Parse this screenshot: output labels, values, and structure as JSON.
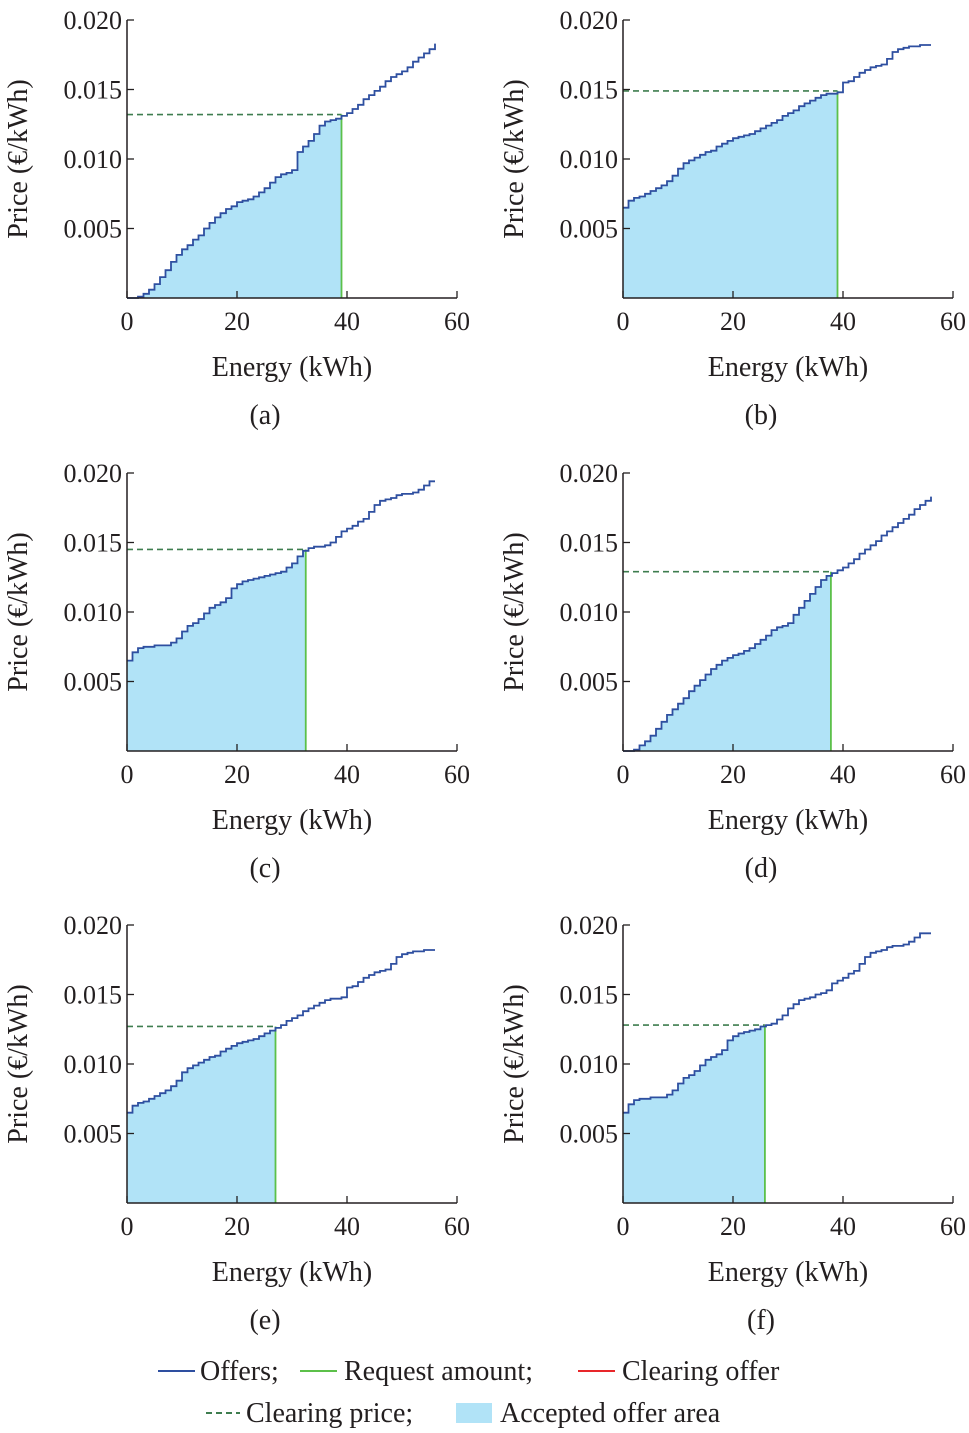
{
  "colors": {
    "offers": "#2e4fa0",
    "request": "#5cc04a",
    "clearing_offer": "#e8262a",
    "clearing_price": "#3e7d4f",
    "accepted_area": "#b1e3f7",
    "axis": "#231f20"
  },
  "legend": {
    "offers": "Offers;",
    "request": "Request amount;",
    "clearing_offer": "Clearing offer",
    "clearing_price": "Clearing price;",
    "accepted_area": "Accepted offer area"
  },
  "chart_data": [
    {
      "type": "line",
      "panel_label": "(a)",
      "xlabel": "Energy (kWh)",
      "ylabel": "Price (€/kWh)",
      "xlim": [
        0,
        60
      ],
      "ylim": [
        0,
        0.02
      ],
      "xticks": [
        "0",
        "20",
        "40",
        "60"
      ],
      "yticks": [
        "0.005",
        "0.010",
        "0.015",
        "0.020"
      ],
      "offers": {
        "x": [
          0,
          2,
          3,
          4,
          5,
          6,
          7,
          8,
          9,
          10,
          11,
          12,
          13,
          14,
          15,
          16,
          17,
          18,
          19,
          20,
          21,
          22,
          23,
          24,
          25,
          26,
          27,
          28,
          29,
          30,
          31,
          32,
          33,
          34,
          35,
          36,
          37,
          38,
          39,
          40,
          41,
          42,
          43,
          44,
          45,
          46,
          47,
          48,
          49,
          50,
          51,
          52,
          53,
          54,
          55,
          56
        ],
        "y": [
          0.0,
          0.0001,
          0.0003,
          0.0006,
          0.001,
          0.0015,
          0.002,
          0.0026,
          0.0031,
          0.0035,
          0.0038,
          0.0042,
          0.0045,
          0.005,
          0.0054,
          0.0058,
          0.0061,
          0.0064,
          0.0066,
          0.0069,
          0.007,
          0.0071,
          0.0073,
          0.0076,
          0.0079,
          0.0083,
          0.0087,
          0.0089,
          0.009,
          0.0092,
          0.0105,
          0.0109,
          0.0113,
          0.0118,
          0.0124,
          0.0127,
          0.0128,
          0.0129,
          0.0131,
          0.0133,
          0.0136,
          0.0139,
          0.0143,
          0.0146,
          0.0149,
          0.0152,
          0.0156,
          0.0159,
          0.0161,
          0.0163,
          0.0166,
          0.017,
          0.0173,
          0.0176,
          0.0179,
          0.0183
        ]
      },
      "request_amount": 39,
      "clearing_price": 0.0132
    },
    {
      "type": "line",
      "panel_label": "(b)",
      "xlabel": "Energy (kWh)",
      "ylabel": "Price (€/kWh)",
      "xlim": [
        0,
        60
      ],
      "ylim": [
        0,
        0.02
      ],
      "xticks": [
        "0",
        "20",
        "40",
        "60"
      ],
      "yticks": [
        "0.005",
        "0.010",
        "0.015",
        "0.020"
      ],
      "offers": {
        "x": [
          0,
          1,
          2,
          3,
          4,
          5,
          6,
          7,
          8,
          9,
          10,
          11,
          12,
          13,
          14,
          15,
          16,
          17,
          18,
          19,
          20,
          21,
          22,
          23,
          24,
          25,
          26,
          27,
          28,
          29,
          30,
          31,
          32,
          33,
          34,
          35,
          36,
          37,
          38,
          39,
          40,
          41,
          42,
          43,
          44,
          45,
          46,
          47,
          48,
          49,
          50,
          51,
          52,
          53,
          54,
          55,
          56
        ],
        "y": [
          0.0065,
          0.007,
          0.0072,
          0.0073,
          0.0075,
          0.0077,
          0.0079,
          0.0081,
          0.0084,
          0.0088,
          0.0093,
          0.0097,
          0.0099,
          0.0101,
          0.0103,
          0.0105,
          0.0106,
          0.0109,
          0.0111,
          0.0113,
          0.0115,
          0.0116,
          0.0117,
          0.0118,
          0.012,
          0.0122,
          0.0124,
          0.0126,
          0.0128,
          0.0131,
          0.0133,
          0.0135,
          0.0138,
          0.014,
          0.0142,
          0.0144,
          0.0146,
          0.0147,
          0.0147,
          0.0148,
          0.0155,
          0.0156,
          0.0159,
          0.0162,
          0.0164,
          0.0166,
          0.0167,
          0.0168,
          0.0172,
          0.0177,
          0.0179,
          0.018,
          0.0181,
          0.0181,
          0.0182,
          0.0182,
          0.0182
        ]
      },
      "request_amount": 39,
      "clearing_price": 0.0149
    },
    {
      "type": "line",
      "panel_label": "(c)",
      "xlabel": "Energy (kWh)",
      "ylabel": "Price (€/kWh)",
      "xlim": [
        0,
        60
      ],
      "ylim": [
        0,
        0.02
      ],
      "xticks": [
        "0",
        "20",
        "40",
        "60"
      ],
      "yticks": [
        "0.005",
        "0.010",
        "0.015",
        "0.020"
      ],
      "offers": {
        "x": [
          0,
          1,
          2,
          3,
          4,
          5,
          6,
          7,
          8,
          9,
          10,
          11,
          12,
          13,
          14,
          15,
          16,
          17,
          18,
          19,
          20,
          21,
          22,
          23,
          24,
          25,
          26,
          27,
          28,
          29,
          30,
          31,
          32,
          33,
          34,
          35,
          36,
          37,
          38,
          39,
          40,
          41,
          42,
          43,
          44,
          45,
          46,
          47,
          48,
          49,
          50,
          51,
          52,
          53,
          54,
          55,
          56
        ],
        "y": [
          0.0065,
          0.0071,
          0.0074,
          0.0075,
          0.0075,
          0.0076,
          0.0076,
          0.0076,
          0.0078,
          0.0081,
          0.0086,
          0.009,
          0.0092,
          0.0095,
          0.0099,
          0.0103,
          0.0105,
          0.0107,
          0.011,
          0.0117,
          0.012,
          0.0122,
          0.0123,
          0.0124,
          0.0125,
          0.0126,
          0.0127,
          0.0128,
          0.0129,
          0.0132,
          0.0135,
          0.014,
          0.0144,
          0.0146,
          0.0147,
          0.0147,
          0.0148,
          0.015,
          0.0154,
          0.0158,
          0.016,
          0.0162,
          0.0165,
          0.0167,
          0.0172,
          0.0177,
          0.018,
          0.0181,
          0.0182,
          0.0184,
          0.0185,
          0.0185,
          0.0186,
          0.0188,
          0.0191,
          0.0194,
          0.0194
        ]
      },
      "request_amount": 32.5,
      "clearing_price": 0.0145
    },
    {
      "type": "line",
      "panel_label": "(d)",
      "xlabel": "Energy (kWh)",
      "ylabel": "Price (€/kWh)",
      "xlim": [
        0,
        60
      ],
      "ylim": [
        0,
        0.02
      ],
      "xticks": [
        "0",
        "20",
        "40",
        "60"
      ],
      "yticks": [
        "0.005",
        "0.010",
        "0.015",
        "0.020"
      ],
      "offers": {
        "x": [
          0,
          2,
          3,
          4,
          5,
          6,
          7,
          8,
          9,
          10,
          11,
          12,
          13,
          14,
          15,
          16,
          17,
          18,
          19,
          20,
          21,
          22,
          23,
          24,
          25,
          26,
          27,
          28,
          29,
          30,
          31,
          32,
          33,
          34,
          35,
          36,
          37,
          38,
          39,
          40,
          41,
          42,
          43,
          44,
          45,
          46,
          47,
          48,
          49,
          50,
          51,
          52,
          53,
          54,
          55,
          56
        ],
        "y": [
          0.0,
          0.0001,
          0.0004,
          0.0007,
          0.0011,
          0.0016,
          0.0021,
          0.0026,
          0.003,
          0.0034,
          0.0038,
          0.0043,
          0.0047,
          0.0051,
          0.0055,
          0.0059,
          0.0062,
          0.0065,
          0.0067,
          0.0069,
          0.007,
          0.0072,
          0.0074,
          0.0077,
          0.008,
          0.0083,
          0.0087,
          0.0089,
          0.009,
          0.0092,
          0.0098,
          0.0103,
          0.0108,
          0.0113,
          0.0118,
          0.0123,
          0.0126,
          0.0128,
          0.013,
          0.0132,
          0.0135,
          0.0138,
          0.0142,
          0.0145,
          0.0148,
          0.0151,
          0.0155,
          0.0158,
          0.0161,
          0.0164,
          0.0167,
          0.017,
          0.0174,
          0.0177,
          0.018,
          0.0183
        ]
      },
      "request_amount": 37.8,
      "clearing_price": 0.0129
    },
    {
      "type": "line",
      "panel_label": "(e)",
      "xlabel": "Energy (kWh)",
      "ylabel": "Price (€/kWh)",
      "xlim": [
        0,
        60
      ],
      "ylim": [
        0,
        0.02
      ],
      "xticks": [
        "0",
        "20",
        "40",
        "60"
      ],
      "yticks": [
        "0.005",
        "0.010",
        "0.015",
        "0.020"
      ],
      "offers": {
        "x": [
          0,
          1,
          2,
          3,
          4,
          5,
          6,
          7,
          8,
          9,
          10,
          11,
          12,
          13,
          14,
          15,
          16,
          17,
          18,
          19,
          20,
          21,
          22,
          23,
          24,
          25,
          26,
          27,
          28,
          29,
          30,
          31,
          32,
          33,
          34,
          35,
          36,
          37,
          38,
          39,
          40,
          41,
          42,
          43,
          44,
          45,
          46,
          47,
          48,
          49,
          50,
          51,
          52,
          53,
          54,
          55,
          56
        ],
        "y": [
          0.0065,
          0.007,
          0.0072,
          0.0073,
          0.0075,
          0.0077,
          0.0079,
          0.0081,
          0.0084,
          0.0088,
          0.0094,
          0.0097,
          0.0099,
          0.0101,
          0.0103,
          0.0105,
          0.0106,
          0.0109,
          0.0111,
          0.0113,
          0.0115,
          0.0116,
          0.0117,
          0.0118,
          0.012,
          0.0122,
          0.0124,
          0.0126,
          0.0128,
          0.0131,
          0.0133,
          0.0135,
          0.0138,
          0.014,
          0.0142,
          0.0144,
          0.0146,
          0.0147,
          0.0147,
          0.0148,
          0.0155,
          0.0156,
          0.0159,
          0.0162,
          0.0164,
          0.0166,
          0.0167,
          0.0168,
          0.0172,
          0.0177,
          0.0179,
          0.018,
          0.0181,
          0.0181,
          0.0182,
          0.0182,
          0.0182
        ]
      },
      "request_amount": 27,
      "clearing_price": 0.0127
    },
    {
      "type": "line",
      "panel_label": "(f)",
      "xlabel": "Energy (kWh)",
      "ylabel": "Price (€/kWh)",
      "xlim": [
        0,
        60
      ],
      "ylim": [
        0,
        0.02
      ],
      "xticks": [
        "0",
        "20",
        "40",
        "60"
      ],
      "yticks": [
        "0.005",
        "0.010",
        "0.015",
        "0.020"
      ],
      "offers": {
        "x": [
          0,
          1,
          2,
          3,
          4,
          5,
          6,
          7,
          8,
          9,
          10,
          11,
          12,
          13,
          14,
          15,
          16,
          17,
          18,
          19,
          20,
          21,
          22,
          23,
          24,
          25,
          26,
          27,
          28,
          29,
          30,
          31,
          32,
          33,
          34,
          35,
          36,
          37,
          38,
          39,
          40,
          41,
          42,
          43,
          44,
          45,
          46,
          47,
          48,
          49,
          50,
          51,
          52,
          53,
          54,
          55,
          56
        ],
        "y": [
          0.0065,
          0.0071,
          0.0074,
          0.0075,
          0.0075,
          0.0076,
          0.0076,
          0.0076,
          0.0078,
          0.0081,
          0.0086,
          0.009,
          0.0092,
          0.0095,
          0.0099,
          0.0103,
          0.0105,
          0.0107,
          0.011,
          0.0117,
          0.012,
          0.0122,
          0.0123,
          0.0124,
          0.0125,
          0.0127,
          0.0128,
          0.0129,
          0.0132,
          0.0135,
          0.014,
          0.0143,
          0.0146,
          0.0147,
          0.0148,
          0.015,
          0.0151,
          0.0153,
          0.0158,
          0.016,
          0.0162,
          0.0165,
          0.0167,
          0.0172,
          0.0177,
          0.018,
          0.0181,
          0.0182,
          0.0184,
          0.0185,
          0.0185,
          0.0186,
          0.0188,
          0.0191,
          0.0194,
          0.0194,
          0.0194
        ]
      },
      "request_amount": 25.8,
      "clearing_price": 0.0128
    }
  ]
}
